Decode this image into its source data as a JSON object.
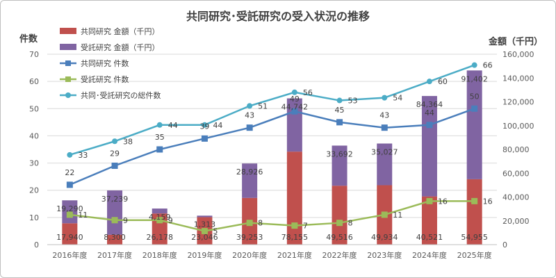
{
  "chart_data": {
    "type": "bar",
    "title": "共同研究･受託研究の受入状況の推移",
    "categories": [
      "2016年度",
      "2017年度",
      "2018年度",
      "2019年度",
      "2020年度",
      "2021年度",
      "2022年度",
      "2023年度",
      "2024年度",
      "2025年度"
    ],
    "y_left": {
      "label": "件数",
      "range": [
        0,
        70
      ],
      "ticks": [
        "0",
        "10",
        "20",
        "30",
        "40",
        "50",
        "60",
        "70"
      ]
    },
    "y_right": {
      "label": "金額（千円）",
      "range": [
        0,
        160000
      ],
      "ticks": [
        "0",
        "20,000",
        "40,000",
        "60,000",
        "80,000",
        "100,000",
        "120,000",
        "140,000",
        "160,000"
      ]
    },
    "grid": true,
    "legend_position": "top-left",
    "bar_series": [
      {
        "name": "共同研究 金額（千円）",
        "color": "#c0504d",
        "axis": "right",
        "values": [
          17940,
          8300,
          26178,
          23046,
          39253,
          78155,
          49516,
          49934,
          40521,
          54955
        ],
        "labels": [
          "17,940",
          "8,300",
          "26,178",
          "23,046",
          "39,253",
          "78,155",
          "49,516",
          "49,934",
          "40,521",
          "54,955"
        ]
      },
      {
        "name": "受託研究 金額（千円）",
        "color": "#8064a2",
        "axis": "right",
        "values": [
          19290,
          37239,
          4159,
          1313,
          28926,
          44742,
          33692,
          35027,
          84364,
          91402
        ],
        "labels": [
          "19,290",
          "37,239",
          "4,159",
          "1,313",
          "28,926",
          "44,742",
          "33,692",
          "35,027",
          "84,364",
          "91,402"
        ]
      }
    ],
    "line_series": [
      {
        "name": "共同研究 件数",
        "color": "#4a7ebb",
        "marker": "square",
        "axis": "left",
        "values": [
          22,
          29,
          35,
          39,
          43,
          49,
          45,
          43,
          44,
          50
        ]
      },
      {
        "name": "受託研究 件数",
        "color": "#9bbb59",
        "marker": "square",
        "axis": "left",
        "values": [
          11,
          9,
          9,
          5,
          8,
          7,
          8,
          11,
          16,
          16
        ]
      },
      {
        "name": "共同･受託研究の総件数",
        "color": "#4bacc6",
        "marker": "circle",
        "axis": "left",
        "values": [
          33,
          38,
          44,
          44,
          51,
          56,
          53,
          54,
          60,
          66
        ]
      }
    ]
  }
}
